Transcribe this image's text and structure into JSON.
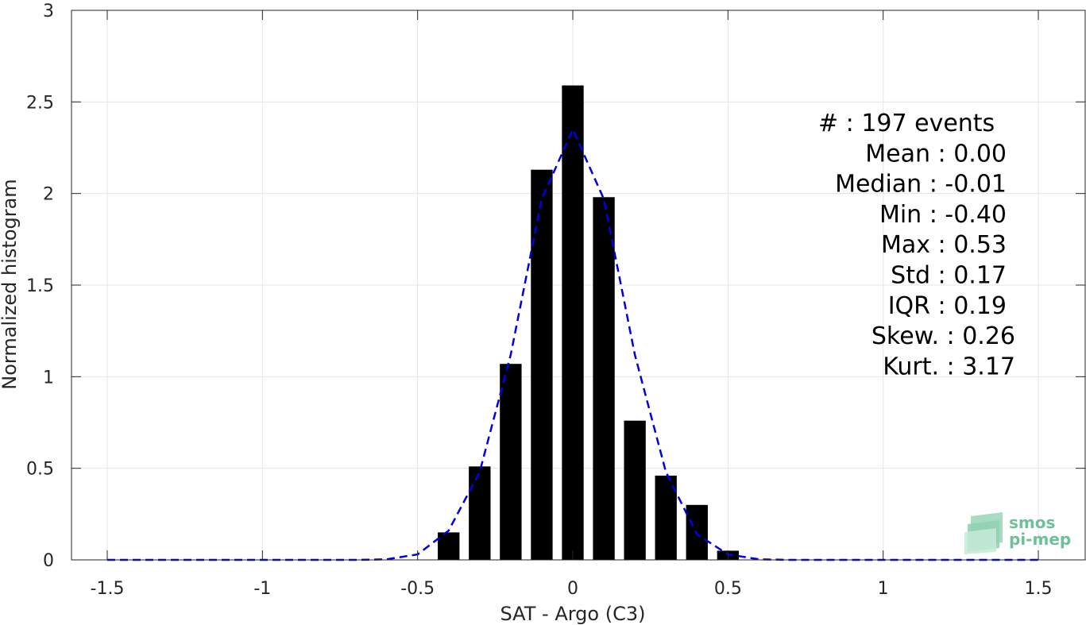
{
  "chart_data": {
    "type": "bar",
    "xlabel": "SAT - Argo (C3)",
    "ylabel": "Normalized histogram",
    "xlim": [
      -1.5,
      1.5
    ],
    "ylim": [
      0,
      3
    ],
    "grid": true,
    "xticks": [
      -1.5,
      -1,
      -0.5,
      0,
      0.5,
      1,
      1.5
    ],
    "xtick_labels": [
      "-1.5",
      "-1",
      "-0.5",
      "0",
      "0.5",
      "1",
      "1.5"
    ],
    "yticks": [
      0,
      0.5,
      1,
      1.5,
      2,
      2.5,
      3
    ],
    "ytick_labels": [
      "0",
      "0.5",
      "1",
      "1.5",
      "2",
      "2.5",
      "3"
    ],
    "bar_width": 0.07,
    "bars": [
      {
        "x": -0.4,
        "value": 0.15
      },
      {
        "x": -0.3,
        "value": 0.51
      },
      {
        "x": -0.2,
        "value": 1.07
      },
      {
        "x": -0.1,
        "value": 2.13
      },
      {
        "x": 0.0,
        "value": 2.59
      },
      {
        "x": 0.1,
        "value": 1.98
      },
      {
        "x": 0.2,
        "value": 0.76
      },
      {
        "x": 0.3,
        "value": 0.46
      },
      {
        "x": 0.4,
        "value": 0.3
      },
      {
        "x": 0.5,
        "value": 0.05
      }
    ],
    "fit_curve": {
      "style": "dashed",
      "color": "#0000e6",
      "x": [
        -1.5,
        -1.4,
        -1.3,
        -1.2,
        -1.1,
        -1.0,
        -0.9,
        -0.8,
        -0.7,
        -0.6,
        -0.5,
        -0.4,
        -0.3,
        -0.2,
        -0.1,
        0.0,
        0.1,
        0.2,
        0.3,
        0.4,
        0.5,
        0.6,
        0.7,
        0.8,
        0.9,
        1.0,
        1.1,
        1.2,
        1.3,
        1.4,
        1.5
      ],
      "y": [
        0,
        0,
        0,
        0,
        0,
        0,
        0,
        0,
        0,
        0.003,
        0.03,
        0.16,
        0.48,
        1.12,
        1.97,
        2.35,
        1.97,
        1.12,
        0.48,
        0.14,
        0.03,
        0.003,
        0,
        0,
        0,
        0,
        0,
        0,
        0,
        0,
        0
      ]
    },
    "annotations": [
      "#  : 197 events",
      "Mean : 0.00",
      "Median : -0.01",
      "Min : -0.40",
      "Max : 0.53",
      "Std : 0.17",
      "IQR : 0.19",
      "Skew. : 0.26",
      "Kurt. : 3.17"
    ],
    "colors": {
      "bars": "#000000",
      "fit": "#0000e6",
      "grid": "#e5e5e5",
      "axes": "#262626"
    }
  },
  "logo": {
    "line1": "smos",
    "line2": "pi-mep"
  }
}
